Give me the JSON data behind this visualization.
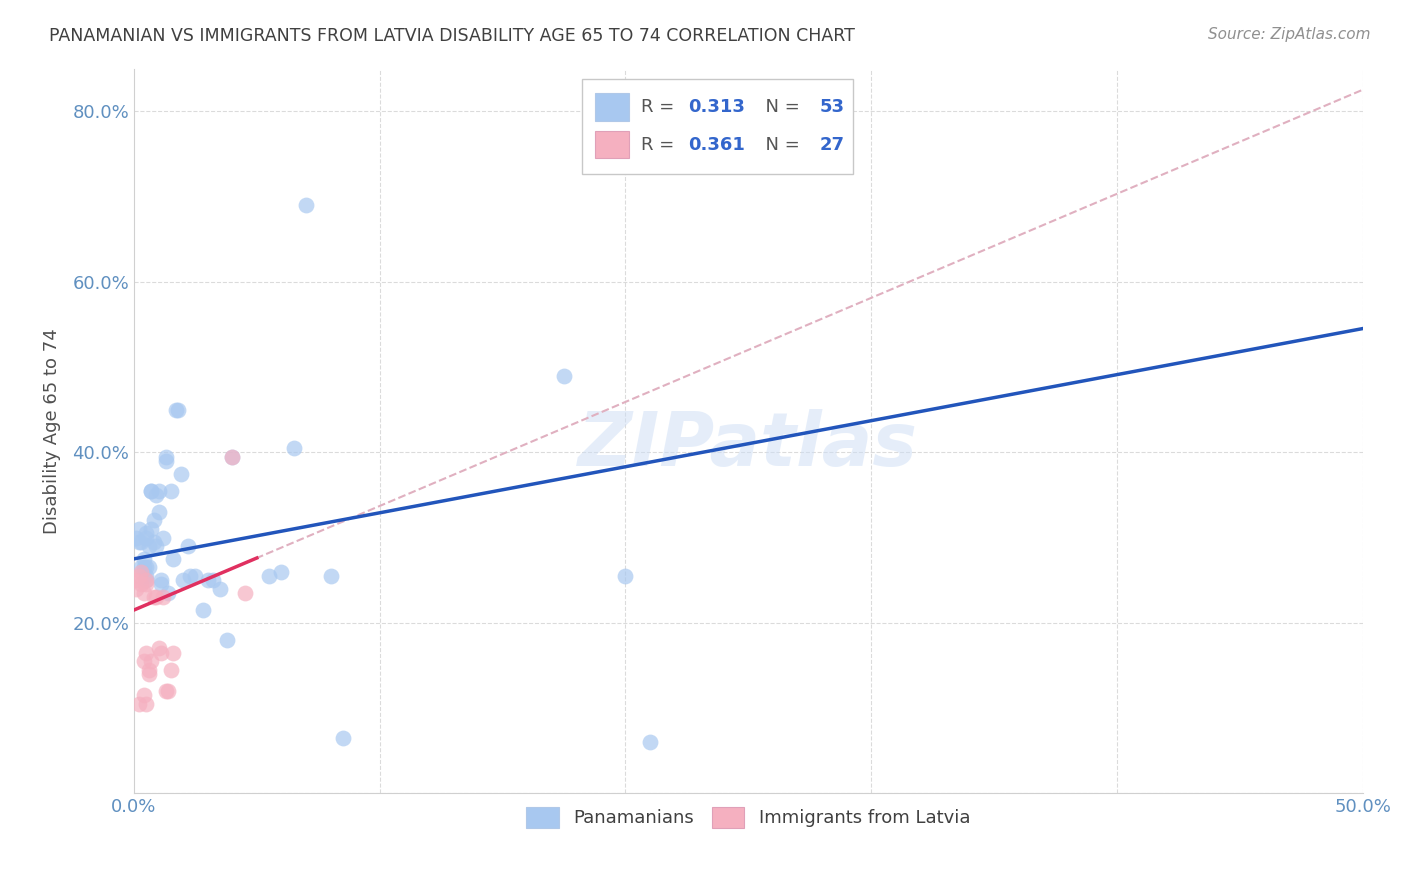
{
  "title": "PANAMANIAN VS IMMIGRANTS FROM LATVIA DISABILITY AGE 65 TO 74 CORRELATION CHART",
  "source": "Source: ZipAtlas.com",
  "ylabel": "Disability Age 65 to 74",
  "xlim": [
    0.0,
    0.5
  ],
  "ylim": [
    0.0,
    0.85
  ],
  "xtick_positions": [
    0.0,
    0.1,
    0.2,
    0.3,
    0.4,
    0.5
  ],
  "xticklabels": [
    "0.0%",
    "",
    "",
    "",
    "",
    "50.0%"
  ],
  "ytick_positions": [
    0.0,
    0.2,
    0.4,
    0.6,
    0.8
  ],
  "yticklabels": [
    "",
    "20.0%",
    "40.0%",
    "60.0%",
    "80.0%"
  ],
  "watermark": "ZIPatlas",
  "panamanian_x": [
    0.001,
    0.002,
    0.002,
    0.003,
    0.003,
    0.004,
    0.004,
    0.005,
    0.005,
    0.005,
    0.005,
    0.005,
    0.006,
    0.006,
    0.007,
    0.007,
    0.007,
    0.008,
    0.008,
    0.009,
    0.009,
    0.01,
    0.01,
    0.011,
    0.011,
    0.012,
    0.013,
    0.013,
    0.014,
    0.015,
    0.016,
    0.017,
    0.018,
    0.019,
    0.02,
    0.022,
    0.023,
    0.025,
    0.028,
    0.03,
    0.032,
    0.035,
    0.038,
    0.04,
    0.055,
    0.06,
    0.065,
    0.07,
    0.08,
    0.085,
    0.175,
    0.2,
    0.21
  ],
  "panamanian_y": [
    0.3,
    0.31,
    0.295,
    0.295,
    0.265,
    0.275,
    0.265,
    0.3,
    0.305,
    0.265,
    0.255,
    0.25,
    0.29,
    0.265,
    0.31,
    0.355,
    0.355,
    0.32,
    0.295,
    0.35,
    0.29,
    0.33,
    0.355,
    0.245,
    0.25,
    0.3,
    0.39,
    0.395,
    0.235,
    0.355,
    0.275,
    0.45,
    0.45,
    0.375,
    0.25,
    0.29,
    0.255,
    0.255,
    0.215,
    0.25,
    0.25,
    0.24,
    0.18,
    0.395,
    0.255,
    0.26,
    0.405,
    0.69,
    0.255,
    0.065,
    0.49,
    0.255,
    0.06
  ],
  "latvia_x": [
    0.001,
    0.001,
    0.002,
    0.002,
    0.003,
    0.003,
    0.004,
    0.004,
    0.004,
    0.005,
    0.005,
    0.005,
    0.005,
    0.006,
    0.006,
    0.007,
    0.008,
    0.009,
    0.01,
    0.011,
    0.012,
    0.013,
    0.014,
    0.015,
    0.016,
    0.04,
    0.045
  ],
  "latvia_y": [
    0.24,
    0.25,
    0.255,
    0.105,
    0.26,
    0.245,
    0.115,
    0.235,
    0.155,
    0.25,
    0.245,
    0.165,
    0.105,
    0.14,
    0.145,
    0.155,
    0.23,
    0.23,
    0.17,
    0.165,
    0.23,
    0.12,
    0.12,
    0.145,
    0.165,
    0.395,
    0.235
  ],
  "panamanian_color": "#a8c8f0",
  "latvia_color": "#f5b0c0",
  "trend_blue_color": "#2255bb",
  "trend_pink_solid_color": "#e03060",
  "trend_pink_dash_color": "#e0b0c0",
  "background_color": "#ffffff",
  "grid_color": "#d8d8d8",
  "title_color": "#404040",
  "axis_label_color": "#6090c0",
  "legend_box_color": "#e8e8e8",
  "r_blue": 0.313,
  "n_blue": 53,
  "r_pink": 0.361,
  "n_pink": 27,
  "blue_trend_intercept": 0.275,
  "blue_trend_slope": 0.54,
  "pink_trend_intercept": 0.215,
  "pink_trend_slope": 1.22
}
